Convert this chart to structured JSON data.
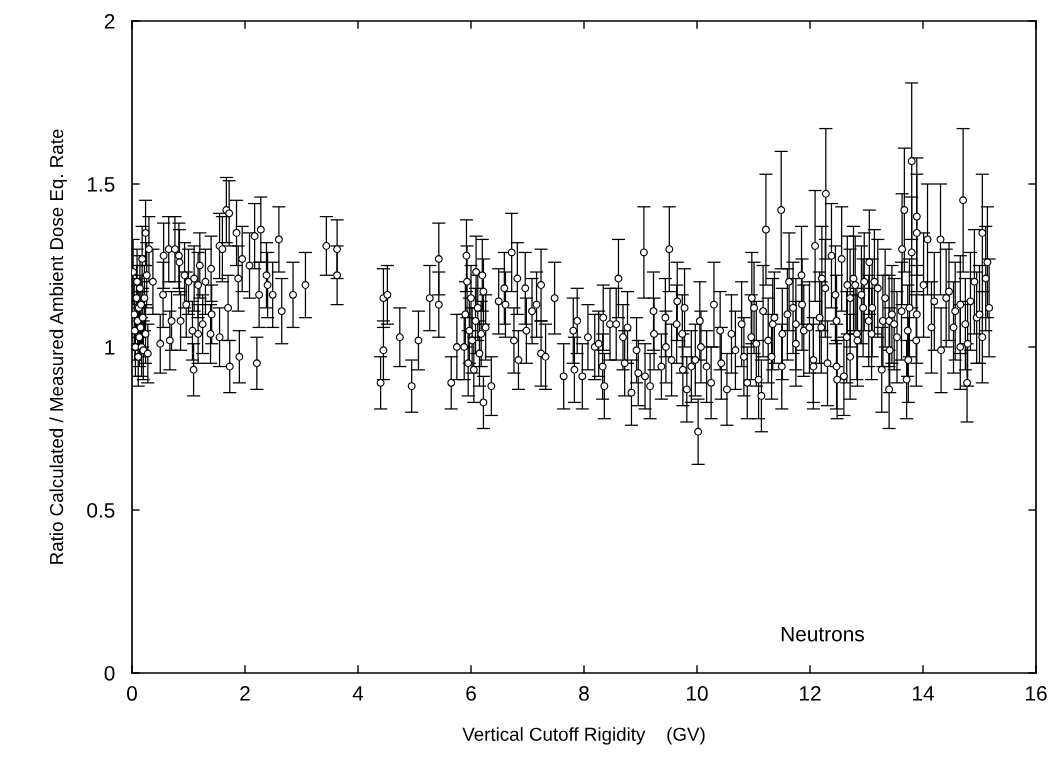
{
  "chart_data": {
    "type": "scatter",
    "xlabel": "Vertical Cutoff Rigidity    (GV)",
    "ylabel": "Ratio Calculated / Measured Ambient Dose Eq. Rate",
    "annotations": [
      "Neutrons"
    ],
    "xlim": [
      0,
      16
    ],
    "ylim": [
      0,
      2
    ],
    "xticks": [
      0,
      2,
      4,
      6,
      8,
      10,
      12,
      14,
      16
    ],
    "yticks": [
      0,
      0.5,
      1,
      1.5,
      2
    ],
    "marker": "circle",
    "series": [
      {
        "color": "#000000",
        "x": [
          0.02,
          0.04,
          0.05,
          0.06,
          0.08,
          0.09,
          0.1,
          0.11,
          0.12,
          0.13,
          0.14,
          0.15,
          0.16,
          0.17,
          0.18,
          0.19,
          0.2,
          0.22,
          0.24,
          0.26,
          0.24,
          0.3,
          0.28,
          0.37,
          0.5,
          0.55,
          0.56,
          0.65,
          0.67,
          0.7,
          0.76,
          0.83,
          0.84,
          0.86,
          0.93,
          0.96,
          1.0,
          1.07,
          1.09,
          1.1,
          1.17,
          1.17,
          1.2,
          1.25,
          1.3,
          1.39,
          1.4,
          1.41,
          1.55,
          1.55,
          1.6,
          1.67,
          1.7,
          1.72,
          1.73,
          1.85,
          1.88,
          1.9,
          1.95,
          2.08,
          2.17,
          2.21,
          2.25,
          2.28,
          2.38,
          2.4,
          2.49,
          2.6,
          2.65,
          2.85,
          3.07,
          3.44,
          3.63,
          3.63,
          4.4,
          4.45,
          4.45,
          4.52,
          4.74,
          4.95,
          5.07,
          5.27,
          5.43,
          5.43,
          5.65,
          5.75,
          5.92,
          5.88,
          5.9,
          5.93,
          5.95,
          5.97,
          6.0,
          6.02,
          6.05,
          6.08,
          6.12,
          6.15,
          6.18,
          6.22,
          6.26,
          6.09,
          6.2,
          6.22,
          6.36,
          6.49,
          6.59,
          6.61,
          6.72,
          6.76,
          6.82,
          6.84,
          6.96,
          6.98,
          7.08,
          7.16,
          7.24,
          7.24,
          7.32,
          7.48,
          7.64,
          7.81,
          7.83,
          7.88,
          7.97,
          8.07,
          8.19,
          8.26,
          8.33,
          8.34,
          8.36,
          8.46,
          8.57,
          8.61,
          8.69,
          8.72,
          8.77,
          8.84,
          8.93,
          8.96,
          9.06,
          9.08,
          9.17,
          9.23,
          9.24,
          9.37,
          9.44,
          9.45,
          9.51,
          9.55,
          9.64,
          9.65,
          9.74,
          9.75,
          9.78,
          9.82,
          9.9,
          9.97,
          10.02,
          10.05,
          10.07,
          10.17,
          10.25,
          10.3,
          10.41,
          10.43,
          10.53,
          10.61,
          10.68,
          10.79,
          10.83,
          10.89,
          10.96,
          10.97,
          11.01,
          11.05,
          11.09,
          11.14,
          11.17,
          11.22,
          11.26,
          11.32,
          11.34,
          11.37,
          11.49,
          11.5,
          11.51,
          11.6,
          11.63,
          11.7,
          11.75,
          11.75,
          11.85,
          11.86,
          11.89,
          11.99,
          12.06,
          12.06,
          12.09,
          12.17,
          12.2,
          12.21,
          12.27,
          12.28,
          12.31,
          12.38,
          12.45,
          12.47,
          12.47,
          12.48,
          12.56,
          12.6,
          12.65,
          12.66,
          12.71,
          12.71,
          12.77,
          12.8,
          12.83,
          12.84,
          12.91,
          12.94,
          12.96,
          13.04,
          13.05,
          13.09,
          13.1,
          13.14,
          13.2,
          13.27,
          13.29,
          13.33,
          13.4,
          13.4,
          13.41,
          13.45,
          13.49,
          13.54,
          13.62,
          13.63,
          13.67,
          13.71,
          13.73,
          13.74,
          13.76,
          13.8,
          13.8,
          13.88,
          13.89,
          13.89,
          13.89,
          14.01,
          14.08,
          14.15,
          14.2,
          14.31,
          14.32,
          14.41,
          14.46,
          14.54,
          14.57,
          14.66,
          14.66,
          14.71,
          14.75,
          14.78,
          14.79,
          14.84,
          14.91,
          14.95,
          15.0,
          15.05,
          15.05,
          15.11,
          15.14,
          15.17
        ],
        "values": [
          1.23,
          1.1,
          1.05,
          1.0,
          1.15,
          1.2,
          1.08,
          0.97,
          1.12,
          1.03,
          1.18,
          1.06,
          1.13,
          1.0,
          1.27,
          1.09,
          0.99,
          1.15,
          1.04,
          1.22,
          1.35,
          1.3,
          0.98,
          1.2,
          1.01,
          1.16,
          1.28,
          1.3,
          1.02,
          1.08,
          1.3,
          1.28,
          1.26,
          1.08,
          1.22,
          1.13,
          1.2,
          1.05,
          0.93,
          1.21,
          1.19,
          1.04,
          1.25,
          1.07,
          1.2,
          1.04,
          1.24,
          1.1,
          1.31,
          1.03,
          1.3,
          1.42,
          1.12,
          1.41,
          0.94,
          1.35,
          1.21,
          0.97,
          1.27,
          1.25,
          1.34,
          0.95,
          1.16,
          1.36,
          1.22,
          1.19,
          1.16,
          1.33,
          1.11,
          1.16,
          1.19,
          1.31,
          1.3,
          1.22,
          0.89,
          1.15,
          0.99,
          1.16,
          1.03,
          0.88,
          1.02,
          1.15,
          1.27,
          1.13,
          0.89,
          1.0,
          1.28,
          1.0,
          1.1,
          1.2,
          0.95,
          1.05,
          1.15,
          1.02,
          0.93,
          1.08,
          1.12,
          0.98,
          1.04,
          1.17,
          1.06,
          1.23,
          1.22,
          0.83,
          0.88,
          1.14,
          1.18,
          1.13,
          1.29,
          1.02,
          1.21,
          0.96,
          1.18,
          1.05,
          1.11,
          1.13,
          1.19,
          0.98,
          0.97,
          1.15,
          0.91,
          1.05,
          0.93,
          1.08,
          0.91,
          1.03,
          1.0,
          1.01,
          0.94,
          1.09,
          0.88,
          1.07,
          1.07,
          1.21,
          1.03,
          0.95,
          1.06,
          0.86,
          0.99,
          0.92,
          1.29,
          0.91,
          0.88,
          1.11,
          1.04,
          0.94,
          1.09,
          1.0,
          1.3,
          0.96,
          1.07,
          1.14,
          1.04,
          0.93,
          1.12,
          0.87,
          0.94,
          0.96,
          0.74,
          1.08,
          1.0,
          0.94,
          0.89,
          1.13,
          1.05,
          0.95,
          0.87,
          1.04,
          0.99,
          1.07,
          0.97,
          0.89,
          1.03,
          1.15,
          1.12,
          1.01,
          0.9,
          0.85,
          1.11,
          1.36,
          1.02,
          0.97,
          1.07,
          1.09,
          1.42,
          0.94,
          1.04,
          1.1,
          1.2,
          1.12,
          1.07,
          1.01,
          1.22,
          1.13,
          1.05,
          1.06,
          0.96,
          0.94,
          1.31,
          1.09,
          1.06,
          1.21,
          1.18,
          1.47,
          0.95,
          1.28,
          1.16,
          1.08,
          0.94,
          0.9,
          1.27,
          0.91,
          1.03,
          1.19,
          0.97,
          1.15,
          1.21,
          1.19,
          1.04,
          1.02,
          1.16,
          1.12,
          1.2,
          1.08,
          1.26,
          1.04,
          1.12,
          1.2,
          1.18,
          0.93,
          1.08,
          1.15,
          0.87,
          1.08,
          0.99,
          1.1,
          1.07,
          1.03,
          1.11,
          1.3,
          1.42,
          0.9,
          1.05,
          0.96,
          1.12,
          1.57,
          1.29,
          1.02,
          1.4,
          1.35,
          1.1,
          1.19,
          1.33,
          1.06,
          1.14,
          1.33,
          0.99,
          1.15,
          1.17,
          1.06,
          1.11,
          1.13,
          1.0,
          1.45,
          1.07,
          0.89,
          1.01,
          1.14,
          1.2,
          1.09,
          1.1,
          1.35,
          1.03,
          1.21,
          1.26,
          1.12
        ],
        "errors": [
          0.1,
          0.09,
          0.09,
          0.09,
          0.1,
          0.1,
          0.09,
          0.09,
          0.09,
          0.09,
          0.1,
          0.09,
          0.09,
          0.09,
          0.1,
          0.09,
          0.09,
          0.1,
          0.09,
          0.1,
          0.1,
          0.1,
          0.09,
          0.1,
          0.09,
          0.1,
          0.1,
          0.1,
          0.09,
          0.09,
          0.1,
          0.1,
          0.1,
          0.09,
          0.1,
          0.1,
          0.1,
          0.09,
          0.08,
          0.1,
          0.1,
          0.09,
          0.1,
          0.09,
          0.1,
          0.09,
          0.1,
          0.09,
          0.1,
          0.09,
          0.1,
          0.1,
          0.1,
          0.1,
          0.08,
          0.1,
          0.1,
          0.08,
          0.1,
          0.1,
          0.1,
          0.08,
          0.1,
          0.1,
          0.1,
          0.1,
          0.1,
          0.1,
          0.1,
          0.1,
          0.1,
          0.09,
          0.09,
          0.09,
          0.08,
          0.09,
          0.09,
          0.09,
          0.09,
          0.08,
          0.09,
          0.1,
          0.11,
          0.1,
          0.08,
          0.1,
          0.11,
          0.1,
          0.1,
          0.11,
          0.1,
          0.1,
          0.1,
          0.1,
          0.1,
          0.1,
          0.1,
          0.1,
          0.1,
          0.1,
          0.1,
          0.11,
          0.11,
          0.08,
          0.09,
          0.1,
          0.11,
          0.1,
          0.12,
          0.1,
          0.11,
          0.09,
          0.11,
          0.1,
          0.1,
          0.1,
          0.11,
          0.1,
          0.1,
          0.11,
          0.1,
          0.1,
          0.1,
          0.1,
          0.1,
          0.1,
          0.1,
          0.1,
          0.1,
          0.1,
          0.1,
          0.11,
          0.11,
          0.12,
          0.1,
          0.1,
          0.11,
          0.1,
          0.1,
          0.1,
          0.14,
          0.1,
          0.1,
          0.12,
          0.11,
          0.1,
          0.12,
          0.11,
          0.13,
          0.11,
          0.12,
          0.12,
          0.12,
          0.11,
          0.12,
          0.1,
          0.11,
          0.11,
          0.1,
          0.12,
          0.11,
          0.11,
          0.11,
          0.13,
          0.12,
          0.11,
          0.11,
          0.12,
          0.12,
          0.13,
          0.12,
          0.11,
          0.13,
          0.14,
          0.14,
          0.13,
          0.12,
          0.11,
          0.14,
          0.17,
          0.13,
          0.13,
          0.14,
          0.14,
          0.18,
          0.13,
          0.14,
          0.14,
          0.15,
          0.14,
          0.14,
          0.13,
          0.15,
          0.14,
          0.14,
          0.14,
          0.13,
          0.13,
          0.17,
          0.14,
          0.14,
          0.16,
          0.15,
          0.2,
          0.13,
          0.16,
          0.15,
          0.14,
          0.13,
          0.12,
          0.16,
          0.12,
          0.14,
          0.15,
          0.13,
          0.15,
          0.16,
          0.15,
          0.14,
          0.14,
          0.15,
          0.15,
          0.15,
          0.14,
          0.16,
          0.14,
          0.15,
          0.16,
          0.15,
          0.13,
          0.14,
          0.15,
          0.12,
          0.14,
          0.13,
          0.15,
          0.14,
          0.14,
          0.15,
          0.17,
          0.19,
          0.12,
          0.14,
          0.13,
          0.15,
          0.24,
          0.17,
          0.14,
          0.18,
          0.18,
          0.15,
          0.16,
          0.17,
          0.14,
          0.15,
          0.17,
          0.13,
          0.15,
          0.15,
          0.14,
          0.15,
          0.15,
          0.13,
          0.22,
          0.14,
          0.12,
          0.13,
          0.15,
          0.16,
          0.14,
          0.15,
          0.18,
          0.14,
          0.16,
          0.17,
          0.15
        ]
      }
    ]
  }
}
